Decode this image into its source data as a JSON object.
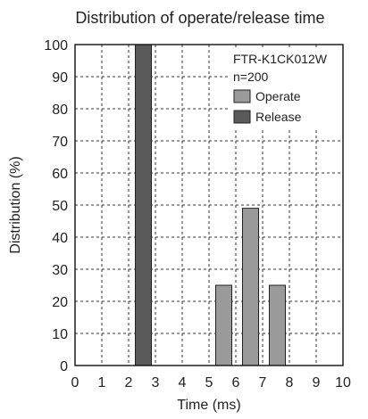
{
  "chart_data": {
    "type": "bar",
    "title": "Distribution of operate/release time",
    "xlabel": "Time (ms)",
    "ylabel": "Distribution (%)",
    "xlim": [
      0,
      10
    ],
    "ylim": [
      0,
      100
    ],
    "xticks": [
      "0",
      "1",
      "2",
      "3",
      "4",
      "5",
      "6",
      "7",
      "8",
      "9",
      "10"
    ],
    "yticks": [
      "0",
      "10",
      "20",
      "30",
      "40",
      "50",
      "60",
      "70",
      "80",
      "90",
      "100"
    ],
    "grid": true,
    "legend_position": "top-right",
    "annotation": {
      "model": "FTR-K1CK012W",
      "sample": "n=200"
    },
    "series": [
      {
        "name": "Operate",
        "color": "#9a9a9a",
        "bars": [
          {
            "x_start": 5.25,
            "x_end": 5.85,
            "value": 25
          },
          {
            "x_start": 6.25,
            "x_end": 6.85,
            "value": 49
          },
          {
            "x_start": 7.25,
            "x_end": 7.85,
            "value": 25
          }
        ]
      },
      {
        "name": "Release",
        "color": "#5a5a5a",
        "bars": [
          {
            "x_start": 2.25,
            "x_end": 2.85,
            "value": 100
          }
        ]
      }
    ]
  }
}
